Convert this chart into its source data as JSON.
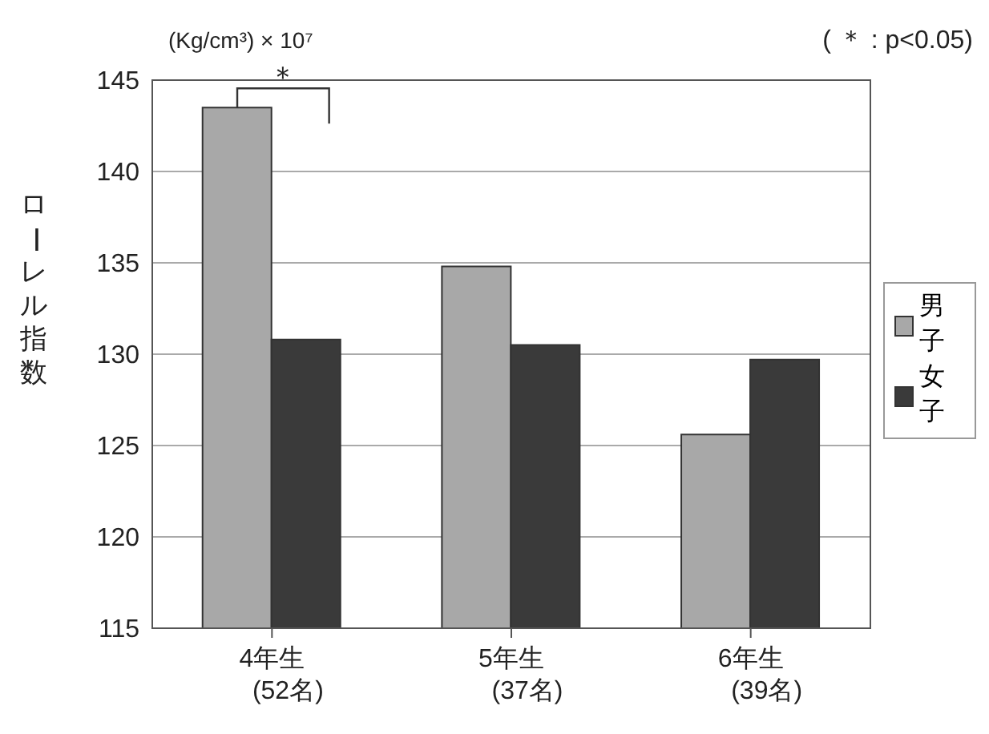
{
  "chart_data": {
    "type": "bar",
    "ylabel": "ローレル指数",
    "categories": [
      "4年生\n(52名)",
      "5年生\n(37名)",
      "6年生\n(39名)"
    ],
    "series": [
      {
        "name": "男子",
        "color": "#a8a8a8",
        "values": [
          143.5,
          134.8,
          125.6
        ]
      },
      {
        "name": "女子",
        "color": "#3a3a3a",
        "values": [
          130.8,
          130.5,
          129.7
        ]
      }
    ],
    "ylim": [
      115,
      145
    ],
    "yticks": [
      115,
      120,
      125,
      130,
      135,
      140,
      145
    ],
    "grid": "y",
    "legend": "right",
    "annotations": [
      "(Kg/cm³) × 10⁷",
      "( ＊ : p<0.05)",
      "＊"
    ]
  }
}
